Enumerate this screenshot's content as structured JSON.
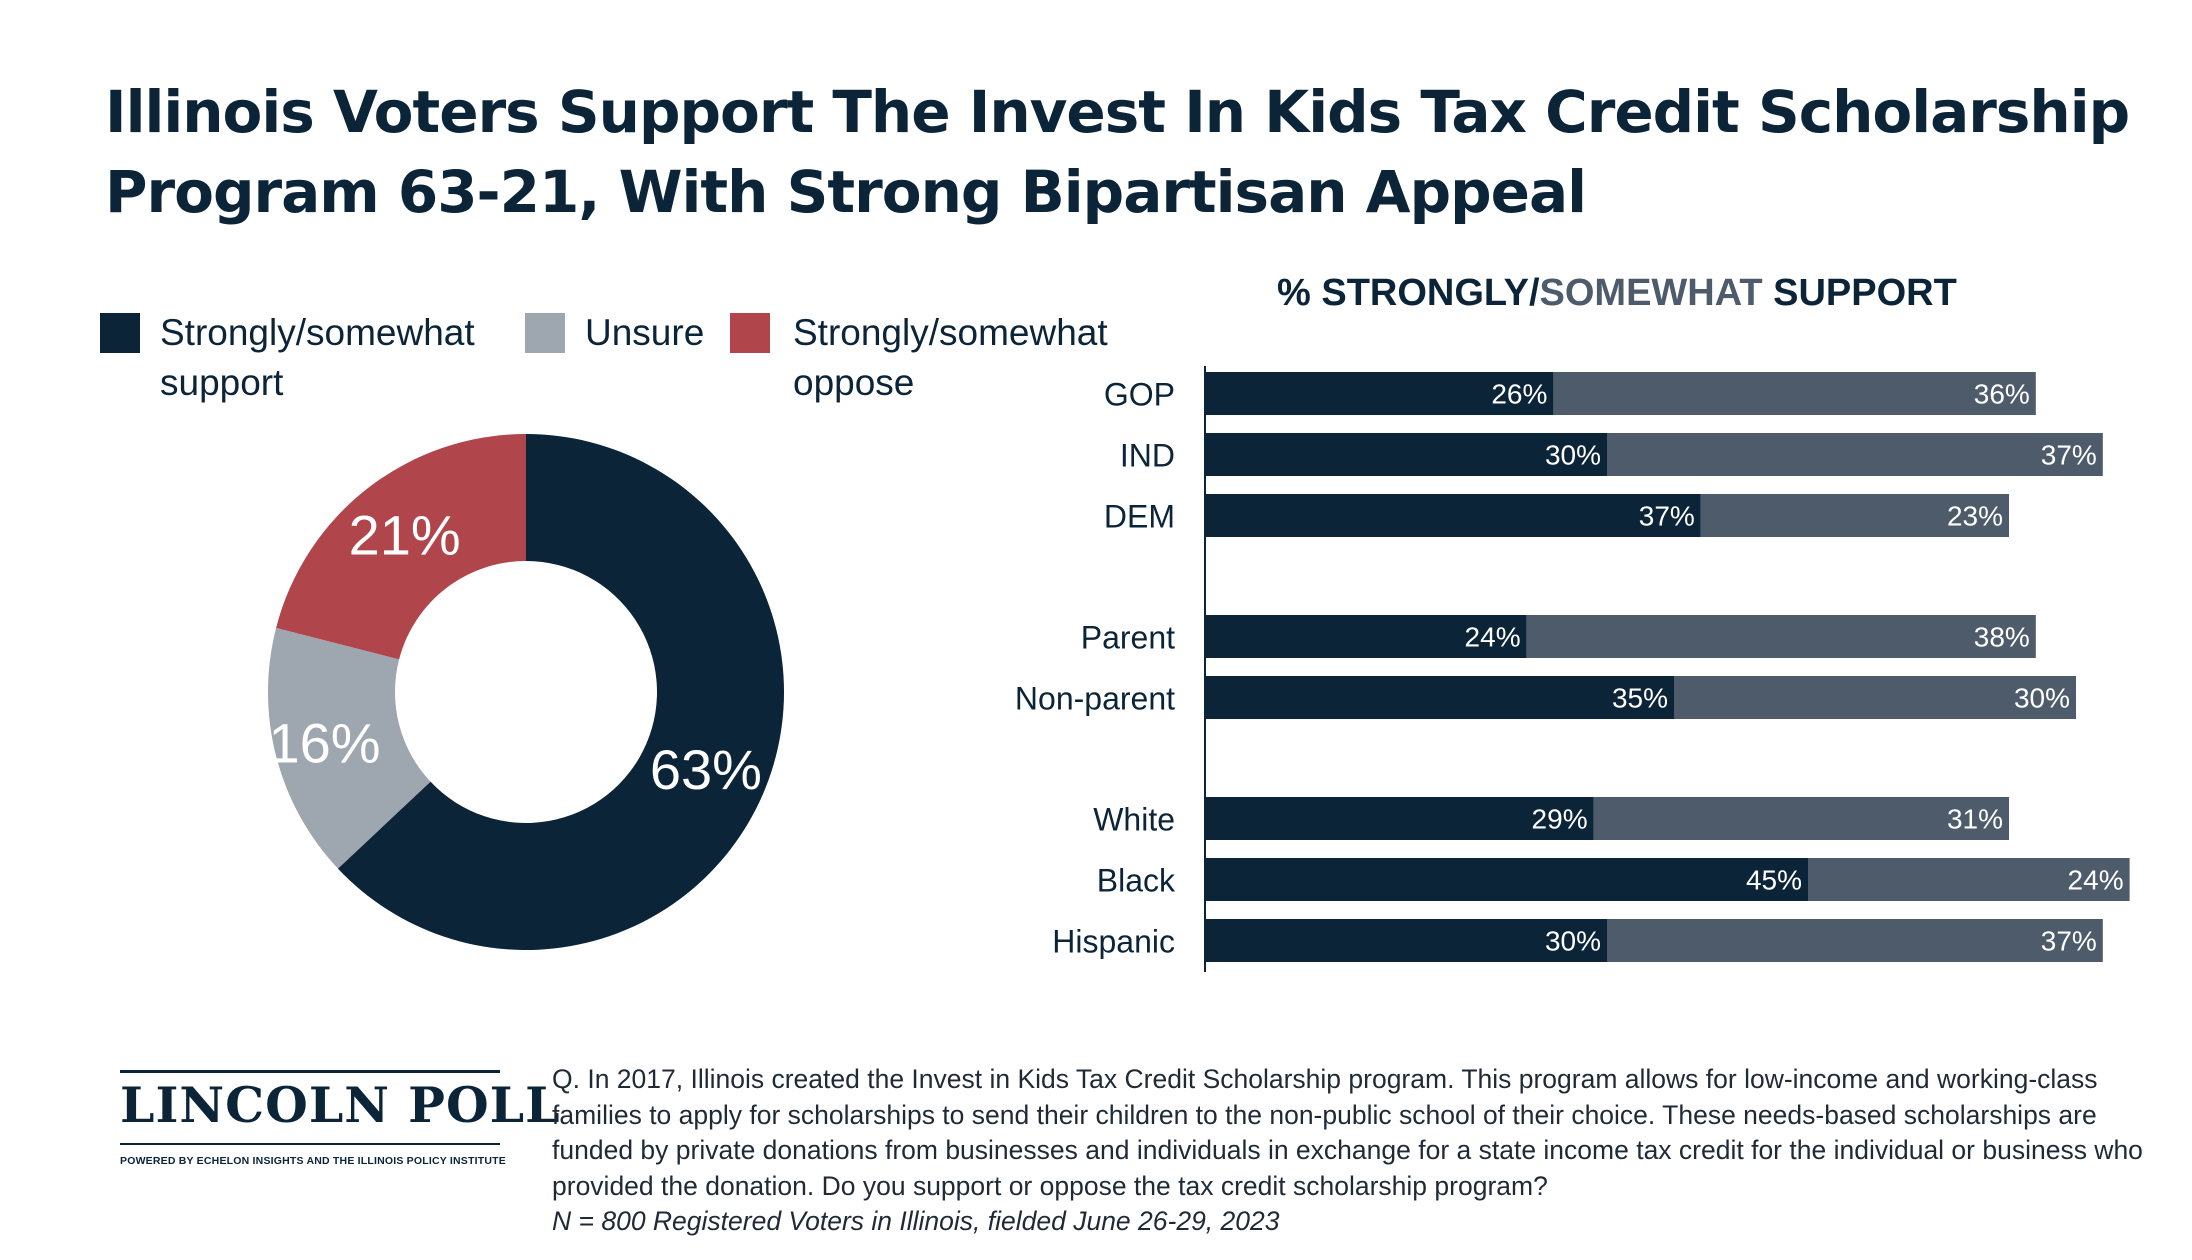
{
  "title": {
    "line1": "Illinois Voters Support The Invest In Kids Tax Credit Scholarship",
    "line2": "Program 63-21, With Strong Bipartisan Appeal"
  },
  "colors": {
    "strongly": "#0b2438",
    "somewhat": "#4e5b6b",
    "unsure": "#9ea6af",
    "oppose": "#b1454c"
  },
  "chart_data": [
    {
      "type": "pie",
      "style": "donut",
      "legend_position": "top-left",
      "legend": [
        {
          "label_line1": "Strongly/somewhat",
          "label_line2": "support"
        },
        {
          "label_line1": "Unsure",
          "label_line2": ""
        },
        {
          "label_line1": "Strongly/somewhat",
          "label_line2": "oppose"
        }
      ],
      "slices": [
        {
          "name": "Strongly/somewhat support",
          "value": 63,
          "label": "63%",
          "color": "#0b2438"
        },
        {
          "name": "Unsure",
          "value": 16,
          "label": "16%",
          "color": "#9ea6af"
        },
        {
          "name": "Strongly/somewhat oppose",
          "value": 21,
          "label": "21%",
          "color": "#b1454c"
        }
      ]
    },
    {
      "type": "bar",
      "orientation": "horizontal",
      "stacked": true,
      "heading": {
        "part1": "% STRONGLY/",
        "part2": "SOMEWHAT",
        "part3": " SUPPORT"
      },
      "xlim": [
        0,
        70
      ],
      "categories": [
        "GOP",
        "IND",
        "DEM",
        "Parent",
        "Non-parent",
        "White",
        "Black",
        "Hispanic"
      ],
      "groups": [
        [
          0,
          1,
          2
        ],
        [
          3,
          4
        ],
        [
          5,
          6,
          7
        ]
      ],
      "series": [
        {
          "name": "STRONGLY",
          "color": "#0b2438",
          "values": [
            26,
            30,
            37,
            24,
            35,
            29,
            45,
            30
          ],
          "labels": [
            "26%",
            "30%",
            "37%",
            "24%",
            "35%",
            "29%",
            "45%",
            "30%"
          ]
        },
        {
          "name": "SOMEWHAT",
          "color": "#4e5b6b",
          "values": [
            36,
            37,
            23,
            38,
            30,
            31,
            24,
            37
          ],
          "labels": [
            "36%",
            "37%",
            "23%",
            "38%",
            "30%",
            "31%",
            "24%",
            "37%"
          ]
        }
      ]
    }
  ],
  "footer": {
    "logo_text": "LINCOLN POLL",
    "logo_sub": "POWERED BY ECHELON INSIGHTS AND THE ILLINOIS POLICY INSTITUTE",
    "question": "Q. In 2017, Illinois created the Invest in Kids Tax Credit Scholarship program. This program allows for low-income and working-class families to apply for scholarships to send their children to the non-public school of their choice. These needs-based scholarships are funded by private donations from businesses and individuals in exchange for a state income tax credit for the individual or business who provided the donation. Do you support or oppose the tax credit scholarship program?",
    "note": "N = 800 Registered Voters in Illinois, fielded June 26-29, 2023"
  }
}
